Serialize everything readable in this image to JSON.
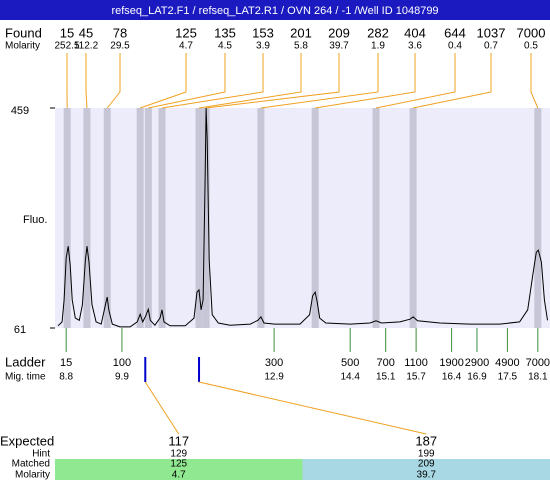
{
  "chart_data": {
    "type": "electropherogram",
    "title": "refseq_LAT2.F1 / refseq_LAT2.R1 / OVN 264 / -1 /Well ID 1048799",
    "xlim": [
      8.58,
      18.34
    ],
    "y_label": "Fluo.",
    "ylim": [
      61,
      459
    ],
    "yticks": [
      61,
      459
    ],
    "found": {
      "label": "Found",
      "molarity_label": "Molarity",
      "sizes": [
        15,
        45,
        78,
        125,
        135,
        153,
        201,
        209,
        282,
        404,
        644,
        1037,
        7000
      ],
      "molarity": [
        252.5,
        112.2,
        29.5,
        4.7,
        4.5,
        3.9,
        5.8,
        39.7,
        1.9,
        3.6,
        0.4,
        0.7,
        0.5
      ],
      "times": [
        8.82,
        9.21,
        9.61,
        10.26,
        10.42,
        10.69,
        11.42,
        11.56,
        12.64,
        13.71,
        14.91,
        15.64,
        18.1
      ],
      "line_color": "#f0a020",
      "band_color": "#c6c6d6"
    },
    "trace": {
      "color": "#000000",
      "x": [
        8.64,
        8.72,
        8.76,
        8.8,
        8.84,
        8.88,
        8.92,
        8.98,
        9.06,
        9.12,
        9.18,
        9.21,
        9.25,
        9.31,
        9.39,
        9.49,
        9.56,
        9.61,
        9.64,
        9.71,
        9.86,
        10.06,
        10.2,
        10.26,
        10.31,
        10.37,
        10.42,
        10.46,
        10.55,
        10.65,
        10.69,
        10.73,
        10.85,
        11.15,
        11.32,
        11.38,
        11.42,
        11.46,
        11.5,
        11.54,
        11.56,
        11.58,
        11.62,
        11.68,
        11.8,
        12.03,
        12.43,
        12.58,
        12.64,
        12.7,
        12.91,
        13.41,
        13.6,
        13.66,
        13.71,
        13.75,
        13.8,
        13.92,
        14.4,
        14.79,
        14.91,
        15.02,
        15.38,
        15.58,
        15.64,
        15.73,
        16.17,
        16.76,
        17.35,
        17.74,
        17.9,
        18.0,
        18.07,
        18.11,
        18.17,
        18.23,
        18.29
      ],
      "values": [
        65,
        72,
        112,
        188,
        209,
        175,
        112,
        79,
        75,
        103,
        184,
        209,
        180,
        103,
        72,
        68,
        97,
        117,
        94,
        68,
        63,
        63,
        72,
        86,
        72,
        83,
        95,
        75,
        66,
        79,
        94,
        72,
        65,
        65,
        79,
        126,
        130,
        94,
        112,
        329,
        459,
        401,
        184,
        85,
        70,
        66,
        68,
        75,
        81,
        70,
        68,
        68,
        85,
        119,
        126,
        108,
        79,
        70,
        68,
        70,
        74,
        70,
        72,
        77,
        81,
        74,
        70,
        68,
        68,
        72,
        94,
        157,
        198,
        202,
        180,
        112,
        75
      ]
    },
    "ladder": {
      "label": "Ladder",
      "time_label": "Mig. time",
      "color": "#3c8c3c",
      "sizes": [
        15,
        100,
        300,
        500,
        700,
        1100,
        1900,
        2900,
        4900,
        7000
      ],
      "times": [
        8.8,
        9.9,
        12.9,
        14.4,
        15.1,
        15.7,
        16.4,
        16.9,
        17.5,
        18.1
      ]
    },
    "expected": {
      "labels": [
        "Expected",
        "Hint",
        "Matched",
        "Molarity"
      ],
      "marker_color": "#0000cc",
      "items": [
        {
          "expected": 117,
          "hint": 129,
          "matched": 125,
          "molarity": 4.7,
          "time": 10.36,
          "color": "#90e890"
        },
        {
          "expected": 187,
          "hint": 199,
          "matched": 209,
          "molarity": 39.7,
          "time": 11.42,
          "color": "#a8d8e4"
        }
      ]
    }
  }
}
